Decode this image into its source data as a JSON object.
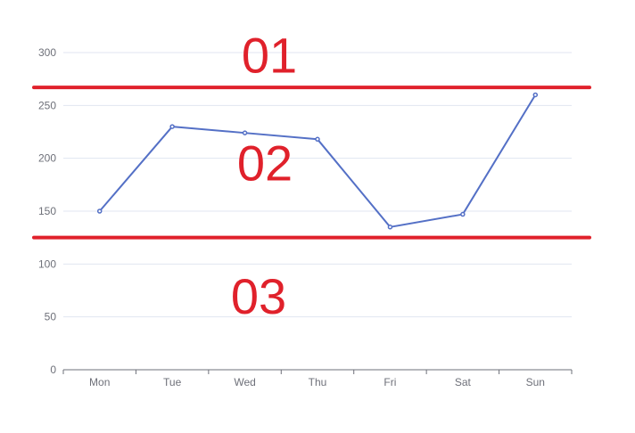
{
  "chart_data": {
    "type": "line",
    "categories": [
      "Mon",
      "Tue",
      "Wed",
      "Thu",
      "Fri",
      "Sat",
      "Sun"
    ],
    "series": [
      {
        "values": [
          150,
          230,
          224,
          218,
          135,
          147,
          260
        ]
      }
    ],
    "ylim": [
      0,
      300
    ],
    "yticks": [
      0,
      50,
      100,
      150,
      200,
      250,
      300
    ],
    "grid": true,
    "annotations": {
      "threshold_lines": [
        267,
        125
      ],
      "zone_labels": [
        "01",
        "02",
        "03"
      ]
    }
  },
  "colors": {
    "series": "#5470c6",
    "threshold": "#e0212b",
    "grid": "#e0e6f1",
    "axis": "#6e7079",
    "zone_label": "#e0212b"
  }
}
